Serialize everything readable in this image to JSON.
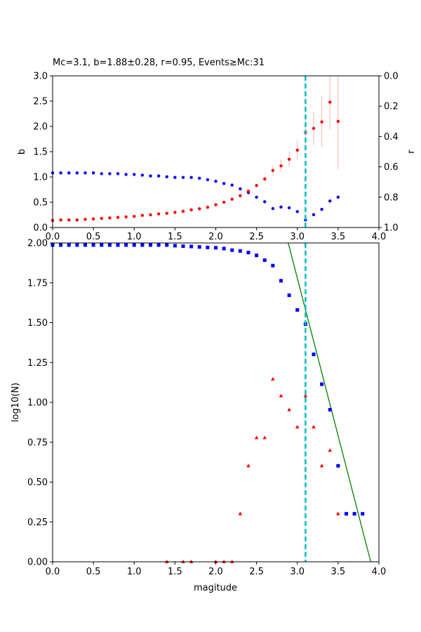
{
  "chart_data": [
    {
      "type": "scatter",
      "title": "Mc=3.1, b=1.88±0.28, r=0.95, Events≥Mc:31",
      "xlabel": "",
      "ylabel": "b",
      "ylabel_right": "r",
      "xlim": [
        0,
        4
      ],
      "ylim": [
        0,
        3
      ],
      "ylim_right": [
        1,
        0
      ],
      "x_ticks": [
        "0.0",
        "0.5",
        "1.0",
        "1.5",
        "2.0",
        "2.5",
        "3.0",
        "3.5",
        "4.0"
      ],
      "y_ticks": [
        "0.0",
        "0.5",
        "1.0",
        "1.5",
        "2.0",
        "2.5",
        "3.0"
      ],
      "y_ticks_right": [
        "0.0",
        "0.2",
        "0.4",
        "0.6",
        "0.8",
        "1.0"
      ],
      "mc_line": 3.1,
      "colors": {
        "b": "#ff0000",
        "r": "#0000ff",
        "errorbar": "#f4b6b0",
        "mc": "#00bfbf"
      },
      "series": [
        {
          "axis": "left",
          "x": [
            0.0,
            0.1,
            0.2,
            0.3,
            0.4,
            0.5,
            0.6,
            0.7,
            0.8,
            0.9,
            1.0,
            1.1,
            1.2,
            1.3,
            1.4,
            1.5,
            1.6,
            1.7,
            1.8,
            1.9,
            2.0,
            2.1,
            2.2,
            2.3,
            2.4,
            2.5,
            2.6,
            2.7,
            2.8,
            2.9,
            3.0,
            3.1,
            3.2,
            3.3,
            3.4,
            3.5
          ],
          "y": [
            0.14,
            0.15,
            0.15,
            0.15,
            0.16,
            0.17,
            0.18,
            0.19,
            0.2,
            0.21,
            0.22,
            0.24,
            0.25,
            0.27,
            0.28,
            0.3,
            0.32,
            0.35,
            0.37,
            0.4,
            0.45,
            0.5,
            0.56,
            0.63,
            0.72,
            0.83,
            0.96,
            1.13,
            1.22,
            1.35,
            1.53,
            1.88,
            1.96,
            2.09,
            2.48,
            2.1
          ],
          "err": [
            0,
            0,
            0,
            0,
            0,
            0,
            0,
            0,
            0,
            0,
            0,
            0,
            0,
            0,
            0,
            0,
            0,
            0,
            0,
            0,
            0,
            0,
            0,
            0,
            0,
            0.03,
            0.06,
            0.1,
            0.12,
            0.15,
            0.2,
            0.28,
            0.33,
            0.5,
            0.54,
            0.95
          ]
        },
        {
          "axis": "right",
          "x": [
            0.0,
            0.1,
            0.2,
            0.3,
            0.4,
            0.5,
            0.6,
            0.7,
            0.8,
            0.9,
            1.0,
            1.1,
            1.2,
            1.3,
            1.4,
            1.5,
            1.6,
            1.7,
            1.8,
            1.9,
            2.0,
            2.1,
            2.2,
            2.3,
            2.4,
            2.5,
            2.6,
            2.7,
            2.8,
            2.9,
            3.0,
            3.1,
            3.2,
            3.3,
            3.4,
            3.5
          ],
          "y": [
            0.64,
            0.64,
            0.64,
            0.64,
            0.64,
            0.64,
            0.645,
            0.645,
            0.645,
            0.65,
            0.65,
            0.655,
            0.66,
            0.66,
            0.665,
            0.67,
            0.67,
            0.67,
            0.675,
            0.685,
            0.695,
            0.71,
            0.72,
            0.745,
            0.77,
            0.8,
            0.83,
            0.875,
            0.865,
            0.87,
            0.895,
            0.95,
            0.915,
            0.88,
            0.825,
            0.8
          ]
        }
      ]
    },
    {
      "type": "scatter",
      "title": "",
      "xlabel": "magitude",
      "ylabel": "log10(N)",
      "xlim": [
        0,
        4
      ],
      "ylim": [
        0,
        2
      ],
      "x_ticks": [
        "0.0",
        "0.5",
        "1.0",
        "1.5",
        "2.0",
        "2.5",
        "3.0",
        "3.5",
        "4.0"
      ],
      "y_ticks": [
        "0.00",
        "0.25",
        "0.50",
        "0.75",
        "1.00",
        "1.25",
        "1.50",
        "1.75",
        "2.00"
      ],
      "mc_line": 3.1,
      "fit_line": {
        "x1": 2.6,
        "y1": 2.57,
        "x2": 3.9,
        "y2": 0.0
      },
      "colors": {
        "cumulative": "#0000ff",
        "noncumulative": "#ff0000",
        "fit": "#008000",
        "mc": "#00bfbf"
      },
      "series": [
        {
          "marker": "square",
          "x": [
            0.0,
            0.1,
            0.2,
            0.3,
            0.4,
            0.5,
            0.6,
            0.7,
            0.8,
            0.9,
            1.0,
            1.1,
            1.2,
            1.3,
            1.4,
            1.5,
            1.6,
            1.7,
            1.8,
            1.9,
            2.0,
            2.1,
            2.2,
            2.3,
            2.4,
            2.5,
            2.6,
            2.7,
            2.8,
            2.9,
            3.0,
            3.1,
            3.2,
            3.3,
            3.4,
            3.5,
            3.6,
            3.7,
            3.8
          ],
          "y": [
            1.987,
            1.987,
            1.987,
            1.987,
            1.987,
            1.987,
            1.987,
            1.987,
            1.987,
            1.987,
            1.987,
            1.987,
            1.987,
            1.987,
            1.987,
            1.983,
            1.98,
            1.978,
            1.975,
            1.972,
            1.97,
            1.965,
            1.955,
            1.95,
            1.94,
            1.922,
            1.892,
            1.858,
            1.763,
            1.672,
            1.58,
            1.491,
            1.301,
            1.114,
            0.954,
            0.602,
            0.301,
            0.301,
            0.301
          ]
        },
        {
          "marker": "triangle",
          "x": [
            1.4,
            1.6,
            1.7,
            2.0,
            2.1,
            2.2,
            2.3,
            2.4,
            2.5,
            2.6,
            2.7,
            2.8,
            2.9,
            3.0,
            3.1,
            3.2,
            3.3,
            3.4,
            3.5
          ],
          "y": [
            0.0,
            0.0,
            0.0,
            0.0,
            0.0,
            0.0,
            0.301,
            0.602,
            0.778,
            0.778,
            1.146,
            1.041,
            0.954,
            0.845,
            1.041,
            0.845,
            0.602,
            0.699,
            0.301
          ]
        }
      ]
    }
  ]
}
